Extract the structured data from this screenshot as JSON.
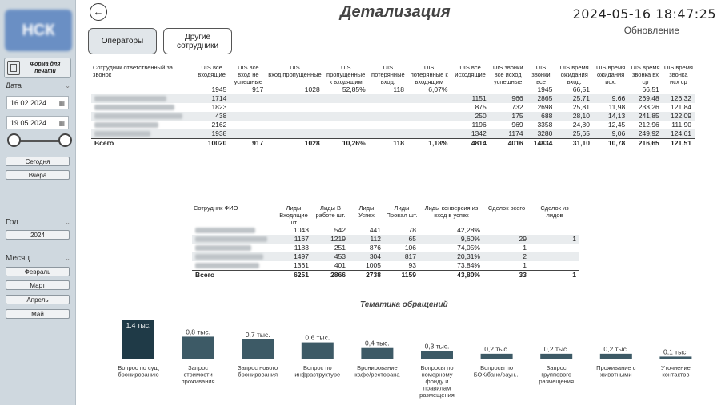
{
  "sidebar": {
    "logo": "НСК",
    "print_label": "Форма для печати",
    "date_label": "Дата",
    "date_from": "16.02.2024",
    "date_to": "19.05.2024",
    "today": "Сегодня",
    "yesterday": "Вчера",
    "year_label": "Год",
    "year": "2024",
    "month_label": "Месяц",
    "months": [
      "Февраль",
      "Март",
      "Апрель",
      "Май"
    ]
  },
  "header": {
    "title": "Детализация",
    "datetime": "2024-05-16 18:47:25",
    "refresh": "Обновление",
    "tabs": [
      "Операторы",
      "Другие сотрудники"
    ]
  },
  "table1": {
    "headers": [
      "Сотрудник ответственный за звонок",
      "UIS все входящие",
      "UIS все вход не успешные",
      "UIS вход.пропущенные",
      "UIS пропущенные к входящим",
      "UIS потерянные вход.",
      "UIS потерянные к входящим",
      "UIS все исходящие",
      "UIS звонки все исход успешные",
      "UIS звонки все",
      "UIS время ожидания вход.",
      "UIS время ожидания исх.",
      "UIS время звонка вх ср",
      "UIS время звонка исх ср"
    ],
    "rows": [
      [
        "",
        "1945",
        "917",
        "1028",
        "52,85%",
        "118",
        "6,07%",
        "",
        "",
        "1945",
        "66,51",
        "",
        "66,51",
        ""
      ],
      [
        "",
        "1714",
        "",
        "",
        "",
        "",
        "",
        "1151",
        "966",
        "2865",
        "25,71",
        "9,66",
        "269,48",
        "126,32"
      ],
      [
        "",
        "1823",
        "",
        "",
        "",
        "",
        "",
        "875",
        "732",
        "2698",
        "25,81",
        "11,98",
        "233,26",
        "121,84"
      ],
      [
        "",
        "438",
        "",
        "",
        "",
        "",
        "",
        "250",
        "175",
        "688",
        "28,10",
        "14,13",
        "241,85",
        "122,09"
      ],
      [
        "",
        "2162",
        "",
        "",
        "",
        "",
        "",
        "1196",
        "969",
        "3358",
        "24,80",
        "12,45",
        "212,96",
        "111,90"
      ],
      [
        "",
        "1938",
        "",
        "",
        "",
        "",
        "",
        "1342",
        "1174",
        "3280",
        "25,65",
        "9,06",
        "249,92",
        "124,61"
      ]
    ],
    "total": [
      "Всего",
      "10020",
      "917",
      "1028",
      "10,26%",
      "118",
      "1,18%",
      "4814",
      "4016",
      "14834",
      "31,10",
      "10,78",
      "216,65",
      "121,51"
    ]
  },
  "table2": {
    "headers": [
      "Сотрудник ФИО",
      "Лиды Входящие шт.",
      "Лиды В работе шт.",
      "Лиды Успех",
      "Лиды Провал шт.",
      "Лиды конверсия из вход в успех",
      "Сделок всего",
      "Сделок из лидов"
    ],
    "rows": [
      [
        "",
        "1043",
        "542",
        "441",
        "78",
        "42,28%",
        "",
        ""
      ],
      [
        "",
        "1167",
        "1219",
        "112",
        "65",
        "9,60%",
        "29",
        "1"
      ],
      [
        "",
        "1183",
        "251",
        "876",
        "106",
        "74,05%",
        "1",
        ""
      ],
      [
        "",
        "1497",
        "453",
        "304",
        "817",
        "20,31%",
        "2",
        ""
      ],
      [
        "",
        "1361",
        "401",
        "1005",
        "93",
        "73,84%",
        "1",
        ""
      ]
    ],
    "total": [
      "Всего",
      "6251",
      "2866",
      "2738",
      "1159",
      "43,80%",
      "33",
      "1"
    ]
  },
  "chart_data": {
    "type": "bar",
    "title": "Тематика обращений",
    "categories": [
      "Вопрос по сущ бронированию",
      "Запрос стоимости проживания",
      "Запрос нового бронирования",
      "Вопрос по инфраструктуре",
      "Бронирование кафе/ресторана",
      "Вопросы по номерному фонду и правилам размещения",
      "Вопросы по БОК/бане/саун...",
      "Запрос группового размещения",
      "Проживание с животными",
      "Уточнение контактов"
    ],
    "values": [
      1400,
      800,
      700,
      600,
      400,
      300,
      200,
      200,
      200,
      100
    ],
    "data_labels": [
      "1,4 тыс.",
      "0,8 тыс.",
      "0,7 тыс.",
      "0,6 тыс.",
      "0,4 тыс.",
      "0,3 тыс.",
      "0,2 тыс.",
      "0,2 тыс.",
      "0,2 тыс.",
      "0,1 тыс."
    ],
    "color": "#3d5a66",
    "highlight_color": "#1f3a47"
  }
}
